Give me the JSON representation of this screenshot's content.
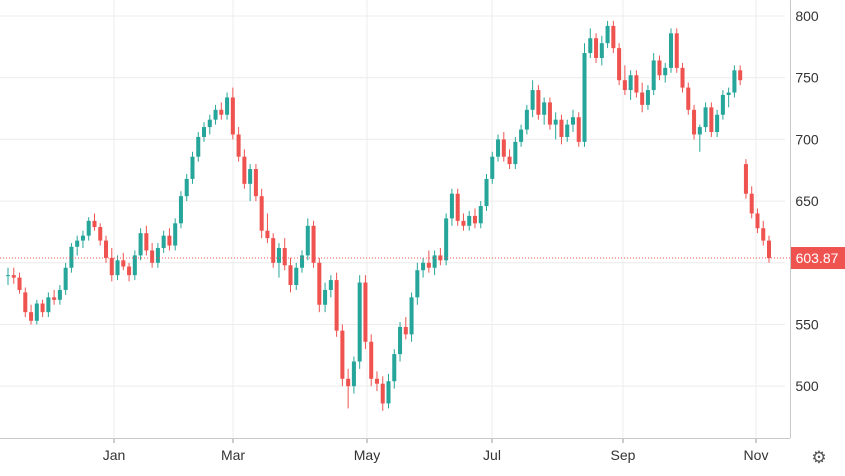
{
  "chart_data": {
    "type": "candlestick",
    "y_axis": {
      "position": "right",
      "range": [
        458,
        813
      ],
      "ticks": [
        500,
        550,
        600,
        650,
        700,
        750,
        800
      ],
      "tick_labels": [
        "500",
        "550",
        "",
        "650",
        "700",
        "750",
        "800"
      ]
    },
    "x_axis": {
      "ticks": [
        {
          "date": "Jan",
          "label": "Jan"
        },
        {
          "date": "Mar",
          "label": "Mar"
        },
        {
          "date": "May",
          "label": "May"
        },
        {
          "date": "Jul",
          "label": "Jul"
        },
        {
          "date": "Sep",
          "label": "Sep"
        },
        {
          "date": "Nov",
          "label": "Nov"
        }
      ]
    },
    "last_price": {
      "value": 603.87,
      "label": "603.87",
      "color": "#ef5350"
    },
    "colors": {
      "up": "#26a69a",
      "down": "#ef5350",
      "grid": "#ececec",
      "axis_text": "#333333"
    },
    "grid": true,
    "series": [
      {
        "o": 590,
        "h": 596,
        "l": 582,
        "c": 590
      },
      {
        "o": 590,
        "h": 596,
        "l": 583,
        "c": 588
      },
      {
        "o": 588,
        "h": 592,
        "l": 575,
        "c": 578
      },
      {
        "o": 576,
        "h": 580,
        "l": 556,
        "c": 560
      },
      {
        "o": 560,
        "h": 566,
        "l": 550,
        "c": 553
      },
      {
        "o": 553,
        "h": 570,
        "l": 550,
        "c": 567
      },
      {
        "o": 567,
        "h": 570,
        "l": 556,
        "c": 560
      },
      {
        "o": 560,
        "h": 576,
        "l": 556,
        "c": 572
      },
      {
        "o": 572,
        "h": 578,
        "l": 566,
        "c": 570
      },
      {
        "o": 570,
        "h": 582,
        "l": 566,
        "c": 578
      },
      {
        "o": 578,
        "h": 600,
        "l": 574,
        "c": 596
      },
      {
        "o": 596,
        "h": 616,
        "l": 592,
        "c": 613
      },
      {
        "o": 613,
        "h": 622,
        "l": 606,
        "c": 618
      },
      {
        "o": 618,
        "h": 626,
        "l": 612,
        "c": 622
      },
      {
        "o": 622,
        "h": 637,
        "l": 618,
        "c": 634
      },
      {
        "o": 634,
        "h": 640,
        "l": 626,
        "c": 629
      },
      {
        "o": 629,
        "h": 632,
        "l": 614,
        "c": 618
      },
      {
        "o": 618,
        "h": 622,
        "l": 600,
        "c": 604
      },
      {
        "o": 604,
        "h": 612,
        "l": 585,
        "c": 590
      },
      {
        "o": 590,
        "h": 606,
        "l": 586,
        "c": 602
      },
      {
        "o": 602,
        "h": 608,
        "l": 594,
        "c": 597
      },
      {
        "o": 597,
        "h": 600,
        "l": 585,
        "c": 590
      },
      {
        "o": 590,
        "h": 610,
        "l": 586,
        "c": 606
      },
      {
        "o": 606,
        "h": 628,
        "l": 602,
        "c": 624
      },
      {
        "o": 624,
        "h": 630,
        "l": 606,
        "c": 610
      },
      {
        "o": 610,
        "h": 616,
        "l": 596,
        "c": 600
      },
      {
        "o": 600,
        "h": 616,
        "l": 596,
        "c": 612
      },
      {
        "o": 612,
        "h": 626,
        "l": 608,
        "c": 622
      },
      {
        "o": 622,
        "h": 628,
        "l": 610,
        "c": 614
      },
      {
        "o": 614,
        "h": 636,
        "l": 610,
        "c": 632
      },
      {
        "o": 632,
        "h": 658,
        "l": 628,
        "c": 654
      },
      {
        "o": 654,
        "h": 672,
        "l": 650,
        "c": 668
      },
      {
        "o": 668,
        "h": 690,
        "l": 664,
        "c": 686
      },
      {
        "o": 686,
        "h": 706,
        "l": 682,
        "c": 702
      },
      {
        "o": 702,
        "h": 714,
        "l": 698,
        "c": 710
      },
      {
        "o": 710,
        "h": 720,
        "l": 704,
        "c": 716
      },
      {
        "o": 716,
        "h": 728,
        "l": 712,
        "c": 724
      },
      {
        "o": 724,
        "h": 730,
        "l": 716,
        "c": 720
      },
      {
        "o": 720,
        "h": 738,
        "l": 716,
        "c": 734
      },
      {
        "o": 734,
        "h": 742,
        "l": 700,
        "c": 704
      },
      {
        "o": 704,
        "h": 710,
        "l": 682,
        "c": 686
      },
      {
        "o": 686,
        "h": 692,
        "l": 660,
        "c": 664
      },
      {
        "o": 664,
        "h": 680,
        "l": 650,
        "c": 676
      },
      {
        "o": 676,
        "h": 680,
        "l": 650,
        "c": 654
      },
      {
        "o": 654,
        "h": 660,
        "l": 620,
        "c": 626
      },
      {
        "o": 626,
        "h": 640,
        "l": 616,
        "c": 620
      },
      {
        "o": 620,
        "h": 624,
        "l": 596,
        "c": 600
      },
      {
        "o": 600,
        "h": 616,
        "l": 588,
        "c": 612
      },
      {
        "o": 612,
        "h": 620,
        "l": 594,
        "c": 598
      },
      {
        "o": 598,
        "h": 604,
        "l": 576,
        "c": 582
      },
      {
        "o": 582,
        "h": 600,
        "l": 578,
        "c": 596
      },
      {
        "o": 596,
        "h": 610,
        "l": 592,
        "c": 606
      },
      {
        "o": 606,
        "h": 636,
        "l": 602,
        "c": 630
      },
      {
        "o": 630,
        "h": 634,
        "l": 596,
        "c": 600
      },
      {
        "o": 600,
        "h": 604,
        "l": 560,
        "c": 566
      },
      {
        "o": 566,
        "h": 584,
        "l": 560,
        "c": 578
      },
      {
        "o": 578,
        "h": 590,
        "l": 572,
        "c": 586
      },
      {
        "o": 586,
        "h": 592,
        "l": 540,
        "c": 545
      },
      {
        "o": 545,
        "h": 550,
        "l": 500,
        "c": 506
      },
      {
        "o": 506,
        "h": 514,
        "l": 482,
        "c": 500
      },
      {
        "o": 500,
        "h": 524,
        "l": 494,
        "c": 520
      },
      {
        "o": 520,
        "h": 590,
        "l": 514,
        "c": 584
      },
      {
        "o": 584,
        "h": 590,
        "l": 530,
        "c": 536
      },
      {
        "o": 536,
        "h": 542,
        "l": 500,
        "c": 506
      },
      {
        "o": 506,
        "h": 512,
        "l": 496,
        "c": 502
      },
      {
        "o": 502,
        "h": 508,
        "l": 480,
        "c": 486
      },
      {
        "o": 486,
        "h": 510,
        "l": 482,
        "c": 504
      },
      {
        "o": 504,
        "h": 530,
        "l": 498,
        "c": 526
      },
      {
        "o": 526,
        "h": 552,
        "l": 520,
        "c": 548
      },
      {
        "o": 548,
        "h": 556,
        "l": 538,
        "c": 542
      },
      {
        "o": 542,
        "h": 576,
        "l": 536,
        "c": 572
      },
      {
        "o": 572,
        "h": 600,
        "l": 566,
        "c": 594
      },
      {
        "o": 594,
        "h": 604,
        "l": 588,
        "c": 600
      },
      {
        "o": 600,
        "h": 610,
        "l": 592,
        "c": 596
      },
      {
        "o": 596,
        "h": 610,
        "l": 590,
        "c": 606
      },
      {
        "o": 606,
        "h": 612,
        "l": 598,
        "c": 602
      },
      {
        "o": 602,
        "h": 640,
        "l": 598,
        "c": 636
      },
      {
        "o": 636,
        "h": 660,
        "l": 630,
        "c": 656
      },
      {
        "o": 656,
        "h": 660,
        "l": 630,
        "c": 634
      },
      {
        "o": 634,
        "h": 640,
        "l": 626,
        "c": 630
      },
      {
        "o": 630,
        "h": 642,
        "l": 626,
        "c": 638
      },
      {
        "o": 638,
        "h": 644,
        "l": 628,
        "c": 632
      },
      {
        "o": 632,
        "h": 650,
        "l": 628,
        "c": 646
      },
      {
        "o": 646,
        "h": 672,
        "l": 642,
        "c": 668
      },
      {
        "o": 668,
        "h": 690,
        "l": 664,
        "c": 686
      },
      {
        "o": 686,
        "h": 704,
        "l": 682,
        "c": 700
      },
      {
        "o": 700,
        "h": 706,
        "l": 682,
        "c": 686
      },
      {
        "o": 686,
        "h": 692,
        "l": 676,
        "c": 680
      },
      {
        "o": 680,
        "h": 702,
        "l": 676,
        "c": 698
      },
      {
        "o": 698,
        "h": 712,
        "l": 694,
        "c": 708
      },
      {
        "o": 708,
        "h": 728,
        "l": 704,
        "c": 724
      },
      {
        "o": 724,
        "h": 748,
        "l": 718,
        "c": 740
      },
      {
        "o": 740,
        "h": 744,
        "l": 716,
        "c": 720
      },
      {
        "o": 720,
        "h": 734,
        "l": 712,
        "c": 730
      },
      {
        "o": 730,
        "h": 734,
        "l": 708,
        "c": 712
      },
      {
        "o": 712,
        "h": 722,
        "l": 700,
        "c": 716
      },
      {
        "o": 716,
        "h": 720,
        "l": 696,
        "c": 702
      },
      {
        "o": 702,
        "h": 716,
        "l": 698,
        "c": 712
      },
      {
        "o": 712,
        "h": 724,
        "l": 706,
        "c": 718
      },
      {
        "o": 718,
        "h": 722,
        "l": 694,
        "c": 698
      },
      {
        "o": 698,
        "h": 778,
        "l": 694,
        "c": 770
      },
      {
        "o": 770,
        "h": 790,
        "l": 766,
        "c": 782
      },
      {
        "o": 782,
        "h": 786,
        "l": 762,
        "c": 766
      },
      {
        "o": 766,
        "h": 784,
        "l": 760,
        "c": 778
      },
      {
        "o": 778,
        "h": 796,
        "l": 774,
        "c": 792
      },
      {
        "o": 792,
        "h": 796,
        "l": 770,
        "c": 774
      },
      {
        "o": 774,
        "h": 778,
        "l": 744,
        "c": 748
      },
      {
        "o": 748,
        "h": 760,
        "l": 736,
        "c": 740
      },
      {
        "o": 740,
        "h": 756,
        "l": 732,
        "c": 752
      },
      {
        "o": 752,
        "h": 756,
        "l": 734,
        "c": 738
      },
      {
        "o": 738,
        "h": 746,
        "l": 722,
        "c": 728
      },
      {
        "o": 728,
        "h": 744,
        "l": 724,
        "c": 740
      },
      {
        "o": 740,
        "h": 770,
        "l": 736,
        "c": 764
      },
      {
        "o": 764,
        "h": 768,
        "l": 748,
        "c": 752
      },
      {
        "o": 752,
        "h": 762,
        "l": 746,
        "c": 758
      },
      {
        "o": 758,
        "h": 790,
        "l": 754,
        "c": 786
      },
      {
        "o": 786,
        "h": 790,
        "l": 754,
        "c": 758
      },
      {
        "o": 758,
        "h": 762,
        "l": 738,
        "c": 742
      },
      {
        "o": 742,
        "h": 746,
        "l": 720,
        "c": 724
      },
      {
        "o": 724,
        "h": 728,
        "l": 700,
        "c": 704
      },
      {
        "o": 704,
        "h": 712,
        "l": 690,
        "c": 710
      },
      {
        "o": 710,
        "h": 730,
        "l": 706,
        "c": 726
      },
      {
        "o": 726,
        "h": 730,
        "l": 702,
        "c": 706
      },
      {
        "o": 706,
        "h": 724,
        "l": 702,
        "c": 720
      },
      {
        "o": 720,
        "h": 740,
        "l": 716,
        "c": 736
      },
      {
        "o": 736,
        "h": 742,
        "l": 726,
        "c": 738
      },
      {
        "o": 738,
        "h": 760,
        "l": 734,
        "c": 756
      },
      {
        "o": 756,
        "h": 760,
        "l": 744,
        "c": 748
      },
      {
        "o": 680,
        "h": 684,
        "l": 652,
        "c": 656
      },
      {
        "o": 656,
        "h": 662,
        "l": 636,
        "c": 640
      },
      {
        "o": 640,
        "h": 644,
        "l": 624,
        "c": 628
      },
      {
        "o": 628,
        "h": 634,
        "l": 614,
        "c": 618
      },
      {
        "o": 618,
        "h": 622,
        "l": 600,
        "c": 603.87
      }
    ]
  }
}
